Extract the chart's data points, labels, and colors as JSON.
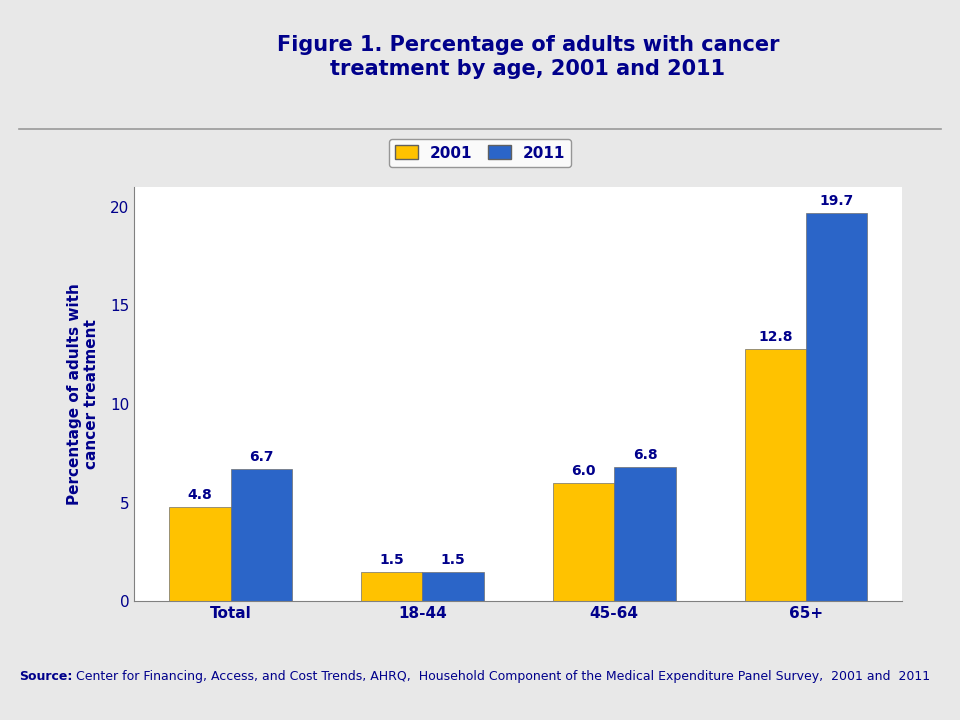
{
  "title": "Figure 1. Percentage of adults with cancer\ntreatment by age, 2001 and 2011",
  "title_color": "#00008B",
  "title_fontsize": 15,
  "categories": [
    "Total",
    "18-44",
    "45-64",
    "65+"
  ],
  "values_2001": [
    4.8,
    1.5,
    6.0,
    12.8
  ],
  "values_2011": [
    6.7,
    1.5,
    6.8,
    19.7
  ],
  "color_2001": "#FFC200",
  "color_2011": "#2B65C8",
  "ylabel": "Percentage of adults with\ncancer treatment",
  "ylabel_color": "#00008B",
  "ylabel_fontsize": 11,
  "ylim": [
    0,
    21
  ],
  "yticks": [
    0,
    5,
    10,
    15,
    20
  ],
  "legend_labels": [
    "2001",
    "2011"
  ],
  "bar_width": 0.32,
  "annotation_color": "#00008B",
  "annotation_fontsize": 10,
  "tick_label_color": "#00008B",
  "tick_label_fontsize": 11,
  "source_bold": "Source:",
  "source_rest": " Center for Financing, Access, and Cost Trends, AHRQ,  Household Component of the Medical Expenditure Panel Survey,  2001 and  2011",
  "source_fontsize": 9,
  "source_color": "#00008B",
  "header_bg": "#DCDCDC",
  "body_bg": "#E8E8E8",
  "chart_bg": "#FFFFFF",
  "separator_color": "#999999"
}
